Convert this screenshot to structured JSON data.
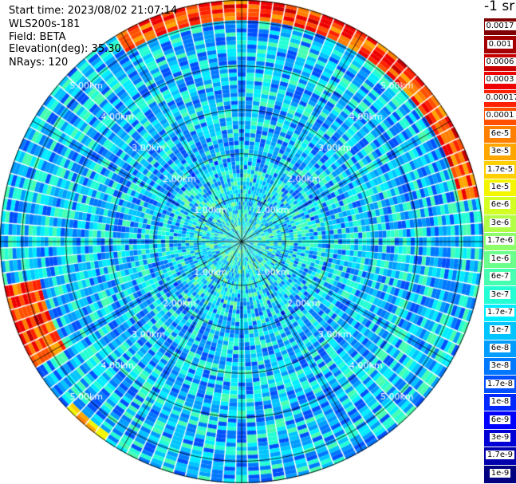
{
  "header": {
    "start_time": "Start time: 2023/08/02 21:07:14",
    "device": "WLS200s-181",
    "field": "Field: BETA",
    "elevation": "Elevation(deg): 35.30",
    "nrays": "NRays: 120"
  },
  "colorbar": {
    "unit": "-1 sr",
    "labels": [
      "0.0017",
      "0.001",
      "0.0006",
      "0.0003",
      "0.00017",
      "0.0001",
      "6e-5",
      "3e-5",
      "1.7e-5",
      "1e-5",
      "6e-6",
      "3e-6",
      "1.7e-6",
      "1e-6",
      "6e-7",
      "3e-7",
      "1.7e-7",
      "1e-7",
      "6e-8",
      "3e-8",
      "1.7e-8",
      "1e-8",
      "6e-9",
      "3e-9",
      "1.7e-9",
      "1e-9"
    ],
    "colors": [
      "#7f0000",
      "#a40000",
      "#c80000",
      "#ee0000",
      "#ff2200",
      "#ff5000",
      "#ff7f00",
      "#ffa600",
      "#ffcf00",
      "#f3f600",
      "#d3ff24",
      "#b1ff46",
      "#8cff6b",
      "#6bff8c",
      "#46ffb1",
      "#24ffd3",
      "#00ecff",
      "#00c4ff",
      "#009cff",
      "#0078ff",
      "#0050ff",
      "#0028ff",
      "#0000ff",
      "#0000d6",
      "#0000ad",
      "#000080"
    ]
  },
  "chart_data": {
    "type": "heatmap",
    "projection": "polar (PPI)",
    "rays": 120,
    "range_rings_km": [
      1.0,
      2.0,
      3.0,
      4.0,
      5.0
    ],
    "range_labels": [
      "1.00km",
      "2.00km",
      "3.00km",
      "4.00km",
      "5.00km"
    ],
    "max_range_km": 5.5,
    "spokes_deg": [
      0,
      30,
      60,
      90,
      120,
      150,
      180,
      210,
      240,
      270,
      300,
      330
    ],
    "value_scale": "log",
    "value_range": [
      1e-09,
      0.0017
    ],
    "high_value_arcs": [
      {
        "azimuth_deg": [
          330,
          80
        ],
        "range_km": [
          5.0,
          5.5
        ],
        "level": 0.0001
      },
      {
        "azimuth_deg": [
          240,
          260
        ],
        "range_km": [
          4.6,
          5.5
        ],
        "level": 0.0001
      },
      {
        "azimuth_deg": [
          215,
          225
        ],
        "range_km": [
          5.3,
          5.5
        ],
        "level": 1.7e-05
      }
    ],
    "typical_level": 1e-07
  }
}
